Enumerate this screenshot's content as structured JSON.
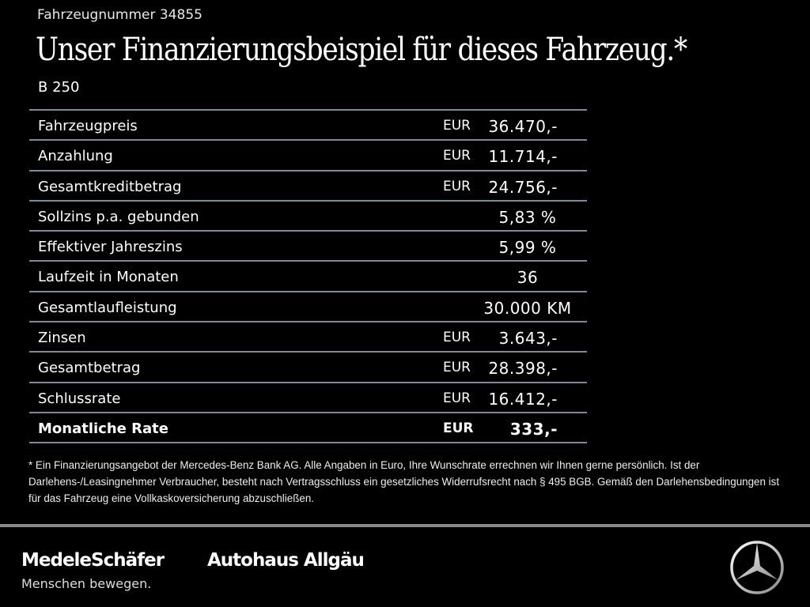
{
  "header": {
    "vehicle_number": "Fahrzeugnummer 34855",
    "title": "Unser Finanzierungsbeispiel für dieses Fahrzeug.*",
    "model": "B 250"
  },
  "table": [
    {
      "label": "Fahrzeugpreis",
      "currency": "EUR",
      "value": "36.470,-"
    },
    {
      "label": "Anzahlung",
      "currency": "EUR",
      "value": "11.714,-"
    },
    {
      "label": "Gesamtkreditbetrag",
      "currency": "EUR",
      "value": "24.756,-"
    },
    {
      "label": "Sollzins p.a. gebunden",
      "currency": "",
      "value": "5,83 %"
    },
    {
      "label": "Effektiver Jahreszins",
      "currency": "",
      "value": "5,99 %"
    },
    {
      "label": "Laufzeit in Monaten",
      "currency": "",
      "value": "36"
    },
    {
      "label": "Gesamtlaufleistung",
      "currency": "",
      "value": "30.000 KM"
    },
    {
      "label": "Zinsen",
      "currency": "EUR",
      "value": "3.643,-"
    },
    {
      "label": "Gesamtbetrag",
      "currency": "EUR",
      "value": "28.398,-"
    },
    {
      "label": "Schlussrate",
      "currency": "EUR",
      "value": "16.412,-"
    },
    {
      "label": "Monatliche Rate",
      "currency": "EUR",
      "value": "333,-"
    }
  ],
  "footnote": "* Ein Finanzierungsangebot der Mercedes-Benz Bank AG. Alle Angaben in Euro, Ihre Wunschrate errechnen wir Ihnen gerne persönlich. Ist der Darlehens-/Leasingnehmer Verbraucher, besteht nach Vertragsschluss ein gesetzliches Widerrufsrecht nach § 495 BGB. Gemäß den Darlehensbedingungen ist für das Fahrzeug eine Vollkaskoversicherung abzuschließen.",
  "footer": {
    "brand1": "MedeleSchäfer",
    "brand2": "Autohaus Allgäu",
    "slogan": "Menschen bewegen.",
    "logo_icon": "mercedes-star-icon"
  }
}
